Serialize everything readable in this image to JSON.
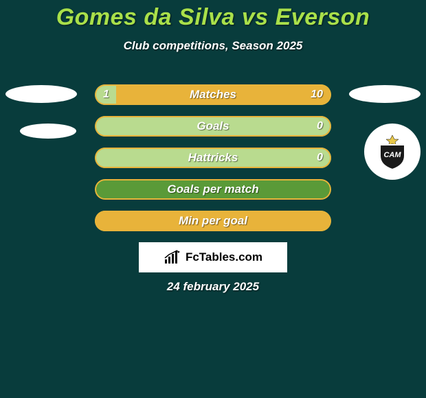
{
  "colors": {
    "background": "#083c3c",
    "title": "#a9e04a",
    "text": "#ffffff",
    "bar_track": "#5a9a38",
    "bar_left_fill": "#b9db8f",
    "bar_right_fill": "#e8b33a",
    "bar_border": "#e8b33a",
    "brand_bg": "#ffffff",
    "brand_text": "#000000"
  },
  "title": "Gomes da Silva vs Everson",
  "subtitle": "Club competitions, Season 2025",
  "date": "24 february 2025",
  "brand": "FcTables.com",
  "left_player": {
    "name": "Gomes da Silva"
  },
  "right_player": {
    "name": "Everson",
    "club": "CAM"
  },
  "bars": [
    {
      "label": "Matches",
      "left_value": "1",
      "right_value": "10",
      "left_pct": 9,
      "right_pct": 91,
      "show_values": true
    },
    {
      "label": "Goals",
      "left_value": "",
      "right_value": "0",
      "left_pct": 100,
      "right_pct": 0,
      "show_values": true
    },
    {
      "label": "Hattricks",
      "left_value": "",
      "right_value": "0",
      "left_pct": 100,
      "right_pct": 0,
      "show_values": true
    },
    {
      "label": "Goals per match",
      "left_value": "",
      "right_value": "",
      "left_pct": 0,
      "right_pct": 0,
      "show_values": false
    },
    {
      "label": "Min per goal",
      "left_value": "",
      "right_value": "",
      "left_pct": 0,
      "right_pct": 100,
      "show_values": false
    }
  ],
  "bar_style": {
    "height": 30,
    "gap": 16,
    "radius": 15,
    "label_fontsize": 17,
    "value_fontsize": 16
  }
}
